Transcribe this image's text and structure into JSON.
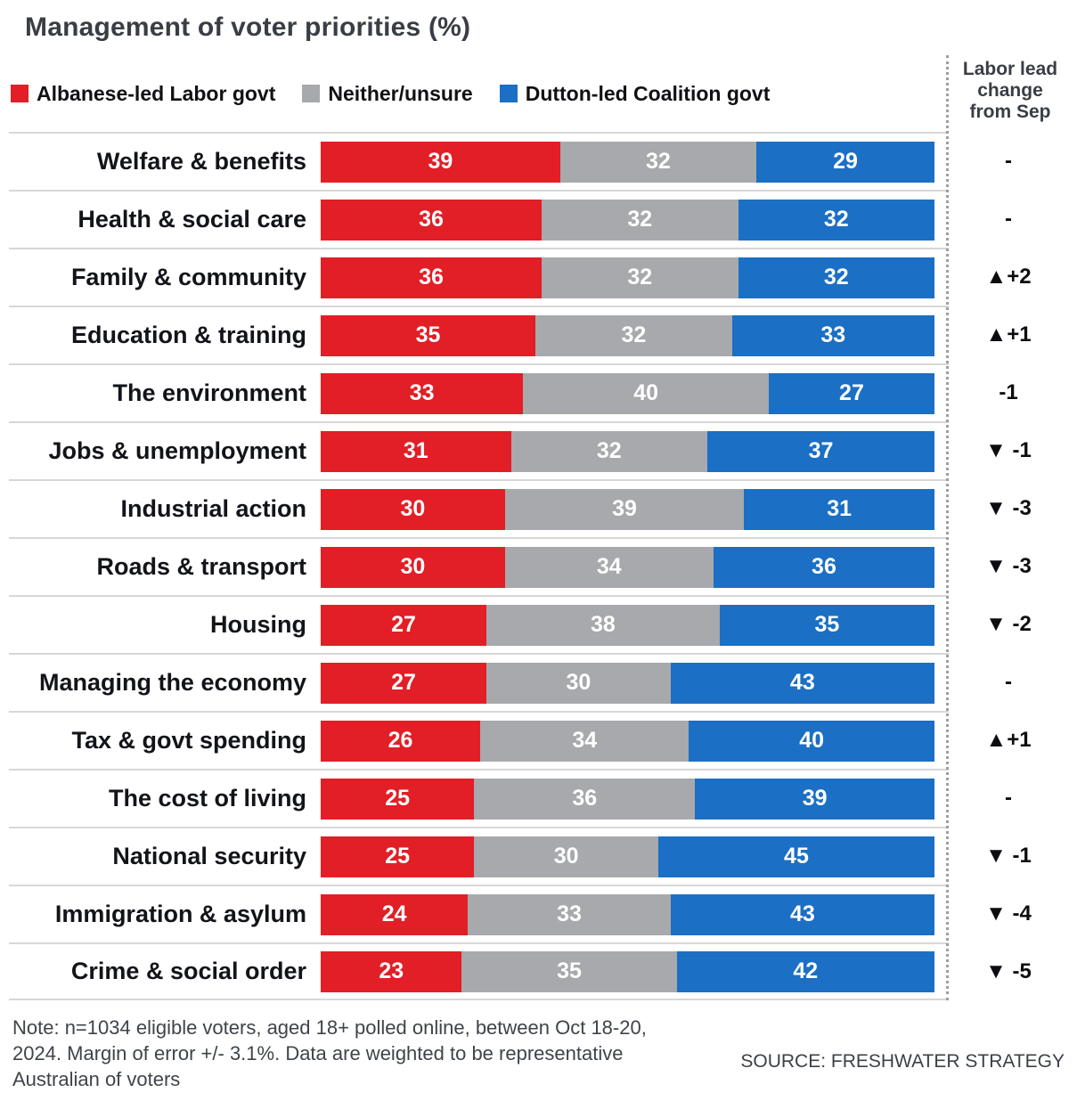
{
  "chart_data": {
    "type": "bar",
    "variant": "horizontal-stacked",
    "title": "Management of voter priorities (%)",
    "xlim": [
      0,
      100
    ],
    "legend_position": "top",
    "grid": false,
    "categories": [
      "Welfare & benefits",
      "Health & social care",
      "Family & community",
      "Education & training",
      "The environment",
      "Jobs & unemployment",
      "Industrial action",
      "Roads & transport",
      "Housing",
      "Managing the economy",
      "Tax & govt spending",
      "The cost of living",
      "National security",
      "Immigration & asylum",
      "Crime & social order"
    ],
    "series": [
      {
        "name": "Albanese-led Labor govt",
        "color": "#e21e26",
        "values": [
          39,
          36,
          36,
          35,
          33,
          31,
          30,
          30,
          27,
          27,
          26,
          25,
          25,
          24,
          23
        ]
      },
      {
        "name": "Neither/unsure",
        "color": "#a7a9ac",
        "values": [
          32,
          32,
          32,
          32,
          40,
          32,
          39,
          34,
          38,
          30,
          34,
          36,
          30,
          33,
          35
        ]
      },
      {
        "name": "Dutton-led Coalition govt",
        "color": "#1b6fc4",
        "values": [
          29,
          32,
          32,
          33,
          27,
          37,
          31,
          36,
          35,
          43,
          40,
          39,
          45,
          43,
          42
        ]
      }
    ],
    "change_column": {
      "header": "Labor lead change from Sep",
      "values": [
        "-",
        "-",
        "▲+2",
        "▲+1",
        "-1",
        "▼ -1",
        "▼ -3",
        "▼ -3",
        "▼ -2",
        "-",
        "▲+1",
        "-",
        "▼ -1",
        "▼ -4",
        "▼ -5"
      ]
    }
  },
  "footer": {
    "note": "Note: n=1034 eligible voters, aged 18+ polled online, between Oct 18-20, 2024. Margin of error +/- 3.1%. Data are weighted to be representative Australian of voters",
    "source": "SOURCE: FRESHWATER STRATEGY"
  }
}
